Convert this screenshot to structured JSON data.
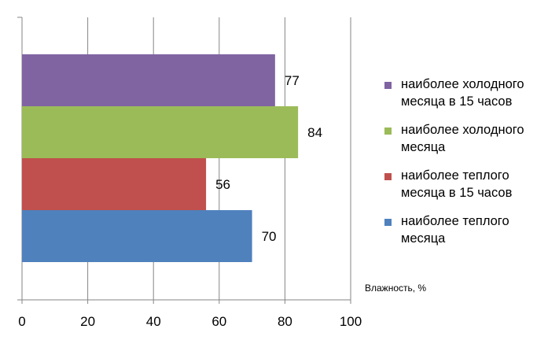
{
  "chart_data": {
    "type": "bar",
    "orientation": "horizontal",
    "xlabel": "Влажность, %",
    "xlim": [
      0,
      100
    ],
    "xticks": [
      0,
      20,
      40,
      60,
      80,
      100
    ],
    "grid": true,
    "legend_position": "right",
    "series": [
      {
        "name": "наиболее холодного месяца в 15 часов",
        "value": 77,
        "color": "#8064A2"
      },
      {
        "name": "наиболее холодного месяца",
        "value": 84,
        "color": "#9BBB59"
      },
      {
        "name": "наиболее теплого месяца в 15 часов",
        "value": 56,
        "color": "#C0504D"
      },
      {
        "name": "наиболее теплого месяца",
        "value": 70,
        "color": "#4F81BD"
      }
    ],
    "legend_lines": [
      [
        "наиболее холодного",
        "месяца в 15 часов"
      ],
      [
        "наиболее холодного",
        "месяца"
      ],
      [
        "наиболее теплого",
        "месяца в 15 часов"
      ],
      [
        "наиболее теплого",
        "месяца"
      ]
    ],
    "value_labels": [
      "77",
      "84",
      "56",
      "70"
    ],
    "tick_labels": [
      "0",
      "20",
      "40",
      "60",
      "80",
      "100"
    ]
  }
}
